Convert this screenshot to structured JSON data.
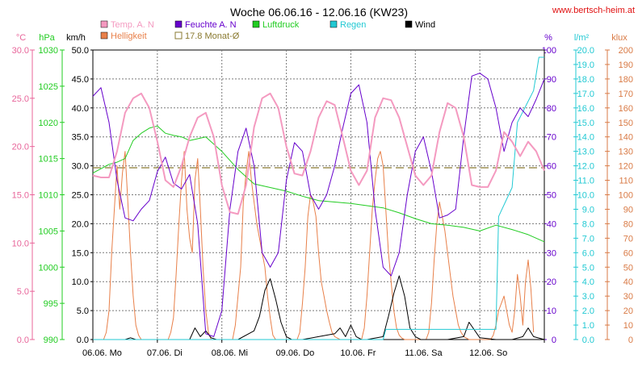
{
  "chart_data": {
    "type": "line",
    "title": "Woche 06.06.16 - 12.06.16 (KW23)",
    "source_label": "www.bertsch-heim.at",
    "x": {
      "start": "2016-06-06T00:00",
      "end": "2016-06-13T00:00",
      "tick_labels": [
        "06.06. Mo",
        "07.06. Di",
        "08.06. Mi",
        "09.06. Do",
        "10.06. Fr",
        "11.06. Sa",
        "12.06. So"
      ]
    },
    "axes": [
      {
        "id": "temp",
        "unit": "°C",
        "min": 0,
        "max": 30,
        "step": 5,
        "format": 1,
        "color": "#e8659a"
      },
      {
        "id": "press",
        "unit": "hPa",
        "min": 990,
        "max": 1030,
        "step": 5,
        "format": 0,
        "color": "#22cc22"
      },
      {
        "id": "wind",
        "unit": "km/h",
        "min": 0,
        "max": 50,
        "step": 5,
        "format": 1,
        "color": "#000000"
      },
      {
        "id": "hum",
        "unit": "%",
        "min": 0,
        "max": 100,
        "step": 10,
        "format": 0,
        "color": "#6600cc"
      },
      {
        "id": "rain",
        "unit": "l/m²",
        "min": 0,
        "max": 20,
        "step": 1,
        "format": 1,
        "color": "#22c9d3"
      },
      {
        "id": "lux",
        "unit": "klux",
        "min": 0,
        "max": 200,
        "step": 10,
        "format": 0,
        "color": "#d97a45"
      }
    ],
    "legend": [
      {
        "label": "Temp. A. N",
        "color": "#f49ac0"
      },
      {
        "label": "Feuchte A. N",
        "color": "#6600cc"
      },
      {
        "label": "Luftdruck",
        "color": "#22cc22"
      },
      {
        "label": "Regen",
        "color": "#22c9d3"
      },
      {
        "label": "Wind",
        "color": "#000000"
      },
      {
        "label": "Helligkeit",
        "color": "#e8804a"
      },
      {
        "label": "17.8 Monat-Ø",
        "color": "#8a7a30",
        "hollow": true
      }
    ],
    "monthly_mean": {
      "value": 17.8,
      "axis": "temp"
    },
    "series": [
      {
        "name": "Temp. A. N",
        "axis": "temp",
        "color": "#f49ac0",
        "width": 2,
        "t": [
          0,
          3,
          6,
          9,
          12,
          15,
          18,
          21,
          24,
          27,
          30,
          33,
          36,
          39,
          42,
          45,
          48,
          51,
          54,
          57,
          60,
          63,
          66,
          69,
          72,
          75,
          78,
          81,
          84,
          87,
          90,
          93,
          96,
          99,
          102,
          105,
          108,
          111,
          114,
          117,
          120,
          123,
          126,
          129,
          132,
          135,
          138,
          141,
          144,
          147,
          150,
          153,
          156,
          159,
          162,
          165,
          168
        ],
        "v": [
          17.0,
          16.8,
          16.8,
          19.5,
          23.5,
          25.0,
          25.5,
          24.0,
          20.5,
          16.5,
          15.8,
          18.0,
          21.0,
          23.0,
          23.5,
          21.0,
          16.0,
          13.2,
          13.0,
          16.0,
          22.0,
          25.0,
          25.5,
          24.0,
          20.0,
          17.2,
          17.0,
          19.5,
          23.0,
          24.7,
          24.3,
          21.0,
          17.5,
          16.0,
          17.5,
          23.0,
          25.0,
          24.8,
          23.0,
          20.0,
          17.0,
          16.0,
          17.0,
          21.5,
          24.5,
          24.0,
          21.0,
          16.0,
          15.8,
          15.8,
          17.5,
          21.5,
          20.5,
          19.0,
          20.5,
          19.5,
          17.5
        ]
      },
      {
        "name": "Feuchte A. N",
        "axis": "hum",
        "color": "#6600cc",
        "width": 1,
        "t": [
          0,
          3,
          6,
          9,
          12,
          15,
          18,
          21,
          24,
          27,
          30,
          33,
          36,
          39,
          42,
          45,
          48,
          51,
          54,
          57,
          60,
          63,
          66,
          69,
          72,
          75,
          78,
          81,
          84,
          87,
          90,
          93,
          96,
          99,
          102,
          105,
          108,
          111,
          114,
          117,
          120,
          123,
          126,
          129,
          132,
          135,
          138,
          141,
          144,
          147,
          150,
          153,
          156,
          159,
          162,
          165,
          168
        ],
        "v": [
          84,
          87,
          75,
          55,
          42,
          41,
          45,
          48,
          58,
          63,
          54,
          52,
          57,
          40,
          2,
          1,
          10,
          45,
          65,
          73,
          60,
          30,
          25,
          30,
          55,
          68,
          65,
          50,
          45,
          50,
          60,
          73,
          85,
          88,
          75,
          45,
          25,
          22,
          30,
          50,
          65,
          70,
          58,
          42,
          43,
          45,
          70,
          91,
          92,
          90,
          80,
          65,
          75,
          80,
          77,
          83,
          90
        ]
      },
      {
        "name": "Luftdruck",
        "axis": "press",
        "color": "#22cc22",
        "width": 1,
        "t": [
          0,
          6,
          9,
          12,
          15,
          18,
          21,
          24,
          27,
          30,
          33,
          36,
          42,
          48,
          54,
          60,
          66,
          72,
          78,
          84,
          90,
          96,
          102,
          108,
          114,
          120,
          126,
          132,
          138,
          144,
          150,
          156,
          162,
          168
        ],
        "v": [
          1013,
          1014.2,
          1014.5,
          1015,
          1017.5,
          1018.5,
          1019.2,
          1019.5,
          1018.5,
          1018.2,
          1018.0,
          1017.5,
          1018.0,
          1016,
          1013.5,
          1011.5,
          1011.0,
          1010.5,
          1009.8,
          1009.2,
          1009.0,
          1008.8,
          1008.5,
          1008.2,
          1007.5,
          1006.7,
          1006.0,
          1005.8,
          1005.5,
          1005.0,
          1005.8,
          1005.2,
          1004.5,
          1003.5
        ]
      },
      {
        "name": "Regen",
        "axis": "rain",
        "color": "#22c9d3",
        "width": 1,
        "t": [
          0,
          108,
          109,
          150,
          151,
          156,
          158,
          164,
          166,
          168
        ],
        "v": [
          0,
          0,
          0.7,
          0.7,
          8.5,
          10.5,
          15.0,
          17.2,
          19.5,
          19.5
        ]
      },
      {
        "name": "Wind",
        "axis": "wind",
        "color": "#000000",
        "width": 1,
        "t": [
          0,
          12,
          14,
          16,
          18,
          24,
          36,
          38,
          40,
          42,
          44,
          46,
          48,
          54,
          60,
          62,
          64,
          66,
          68,
          70,
          72,
          74,
          76,
          78,
          84,
          90,
          92,
          94,
          96,
          98,
          100,
          102,
          108,
          110,
          112,
          114,
          116,
          118,
          120,
          122,
          124,
          126,
          132,
          138,
          140,
          144,
          150,
          156,
          160,
          162,
          164,
          168
        ],
        "v": [
          0,
          0,
          0.3,
          0,
          0,
          0,
          0,
          2.0,
          0.5,
          1.5,
          0.3,
          0,
          0,
          0,
          1.5,
          4.0,
          8.5,
          10.5,
          7.0,
          3.0,
          0.5,
          0,
          0,
          0,
          0.5,
          1.0,
          2.0,
          0.5,
          2.5,
          0.5,
          0,
          0,
          0.5,
          4.0,
          8.0,
          11.0,
          7.5,
          2.0,
          0.5,
          0,
          0,
          0,
          0,
          0.5,
          3.0,
          0.3,
          0,
          0,
          0.5,
          2.0,
          0.5,
          0
        ]
      },
      {
        "name": "Helligkeit",
        "axis": "lux",
        "color": "#e8804a",
        "width": 1,
        "t": [
          0,
          4,
          5,
          6,
          7,
          8,
          9,
          10,
          11,
          12,
          13,
          14,
          15,
          16,
          17,
          18,
          19,
          20,
          28,
          29,
          30,
          31,
          32,
          33,
          34,
          35,
          36,
          37,
          38,
          39,
          40,
          41,
          42,
          43,
          44,
          52,
          53,
          54,
          55,
          56,
          57,
          58,
          59,
          60,
          61,
          62,
          63,
          64,
          65,
          66,
          67,
          68,
          76,
          77,
          78,
          79,
          80,
          81,
          82,
          83,
          84,
          85,
          86,
          87,
          88,
          89,
          90,
          91,
          92,
          100,
          101,
          102,
          103,
          104,
          105,
          106,
          107,
          108,
          109,
          110,
          111,
          112,
          113,
          114,
          115,
          116,
          124,
          125,
          126,
          127,
          128,
          129,
          130,
          131,
          132,
          133,
          134,
          135,
          136,
          137,
          138,
          139,
          140,
          148,
          149,
          150,
          151,
          152,
          153,
          154,
          155,
          156,
          157,
          158,
          159,
          160,
          161,
          162,
          163,
          164
        ],
        "v": [
          0,
          0,
          5,
          20,
          60,
          90,
          120,
          90,
          115,
          130,
          95,
          60,
          30,
          10,
          3,
          0,
          0,
          0,
          0,
          5,
          15,
          45,
          80,
          110,
          130,
          90,
          70,
          60,
          110,
          125,
          90,
          50,
          20,
          5,
          0,
          0,
          10,
          30,
          50,
          95,
          115,
          130,
          110,
          95,
          80,
          70,
          60,
          50,
          30,
          15,
          3,
          0,
          0,
          5,
          25,
          50,
          85,
          100,
          95,
          85,
          60,
          40,
          30,
          20,
          12,
          5,
          2,
          1,
          0,
          0,
          8,
          30,
          60,
          90,
          110,
          125,
          130,
          120,
          90,
          60,
          40,
          20,
          8,
          3,
          1,
          0,
          0,
          5,
          25,
          55,
          80,
          95,
          85,
          75,
          60,
          45,
          30,
          20,
          10,
          5,
          2,
          1,
          0,
          0,
          3,
          10,
          20,
          25,
          30,
          20,
          10,
          5,
          20,
          45,
          30,
          10,
          40,
          55,
          35,
          5
        ]
      }
    ]
  }
}
